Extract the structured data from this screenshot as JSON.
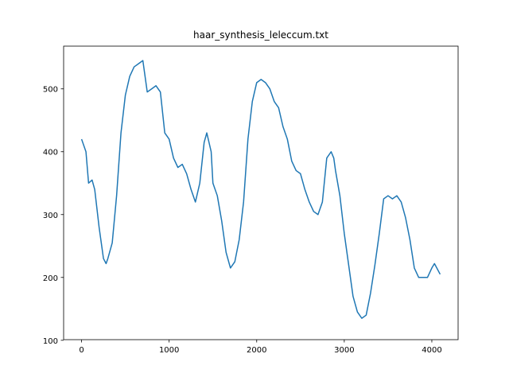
{
  "chart_data": {
    "type": "line",
    "title": "haar_synthesis_leleccum.txt",
    "x": [
      0,
      50,
      80,
      120,
      150,
      200,
      250,
      280,
      300,
      350,
      400,
      450,
      500,
      550,
      600,
      650,
      700,
      720,
      750,
      800,
      850,
      900,
      950,
      1000,
      1050,
      1100,
      1150,
      1200,
      1250,
      1300,
      1350,
      1400,
      1430,
      1480,
      1500,
      1550,
      1600,
      1650,
      1700,
      1750,
      1800,
      1850,
      1900,
      1950,
      2000,
      2050,
      2100,
      2150,
      2200,
      2250,
      2300,
      2350,
      2400,
      2450,
      2500,
      2550,
      2600,
      2650,
      2700,
      2750,
      2800,
      2850,
      2880,
      2900,
      2950,
      3000,
      3050,
      3100,
      3150,
      3200,
      3250,
      3300,
      3350,
      3400,
      3450,
      3500,
      3550,
      3600,
      3650,
      3700,
      3750,
      3800,
      3850,
      3900,
      3950,
      4000,
      4030,
      4095
    ],
    "series": [
      {
        "name": "leleccum",
        "color": "#1f77b4",
        "values": [
          420,
          400,
          350,
          355,
          340,
          280,
          230,
          222,
          230,
          255,
          330,
          430,
          490,
          520,
          535,
          540,
          545,
          525,
          495,
          500,
          505,
          495,
          430,
          420,
          390,
          375,
          380,
          365,
          340,
          320,
          350,
          415,
          430,
          400,
          350,
          330,
          290,
          240,
          215,
          225,
          260,
          320,
          420,
          480,
          510,
          515,
          510,
          500,
          480,
          470,
          440,
          420,
          385,
          370,
          365,
          340,
          320,
          305,
          300,
          320,
          390,
          400,
          390,
          370,
          330,
          270,
          220,
          170,
          145,
          135,
          140,
          175,
          220,
          270,
          325,
          330,
          325,
          330,
          320,
          295,
          260,
          215,
          200,
          200,
          200,
          215,
          222,
          205
        ]
      }
    ],
    "xlim": [
      -205,
      4300
    ],
    "ylim": [
      101,
      568
    ],
    "xticks": [
      0,
      1000,
      2000,
      3000,
      4000
    ],
    "yticks": [
      100,
      200,
      300,
      400,
      500
    ]
  }
}
